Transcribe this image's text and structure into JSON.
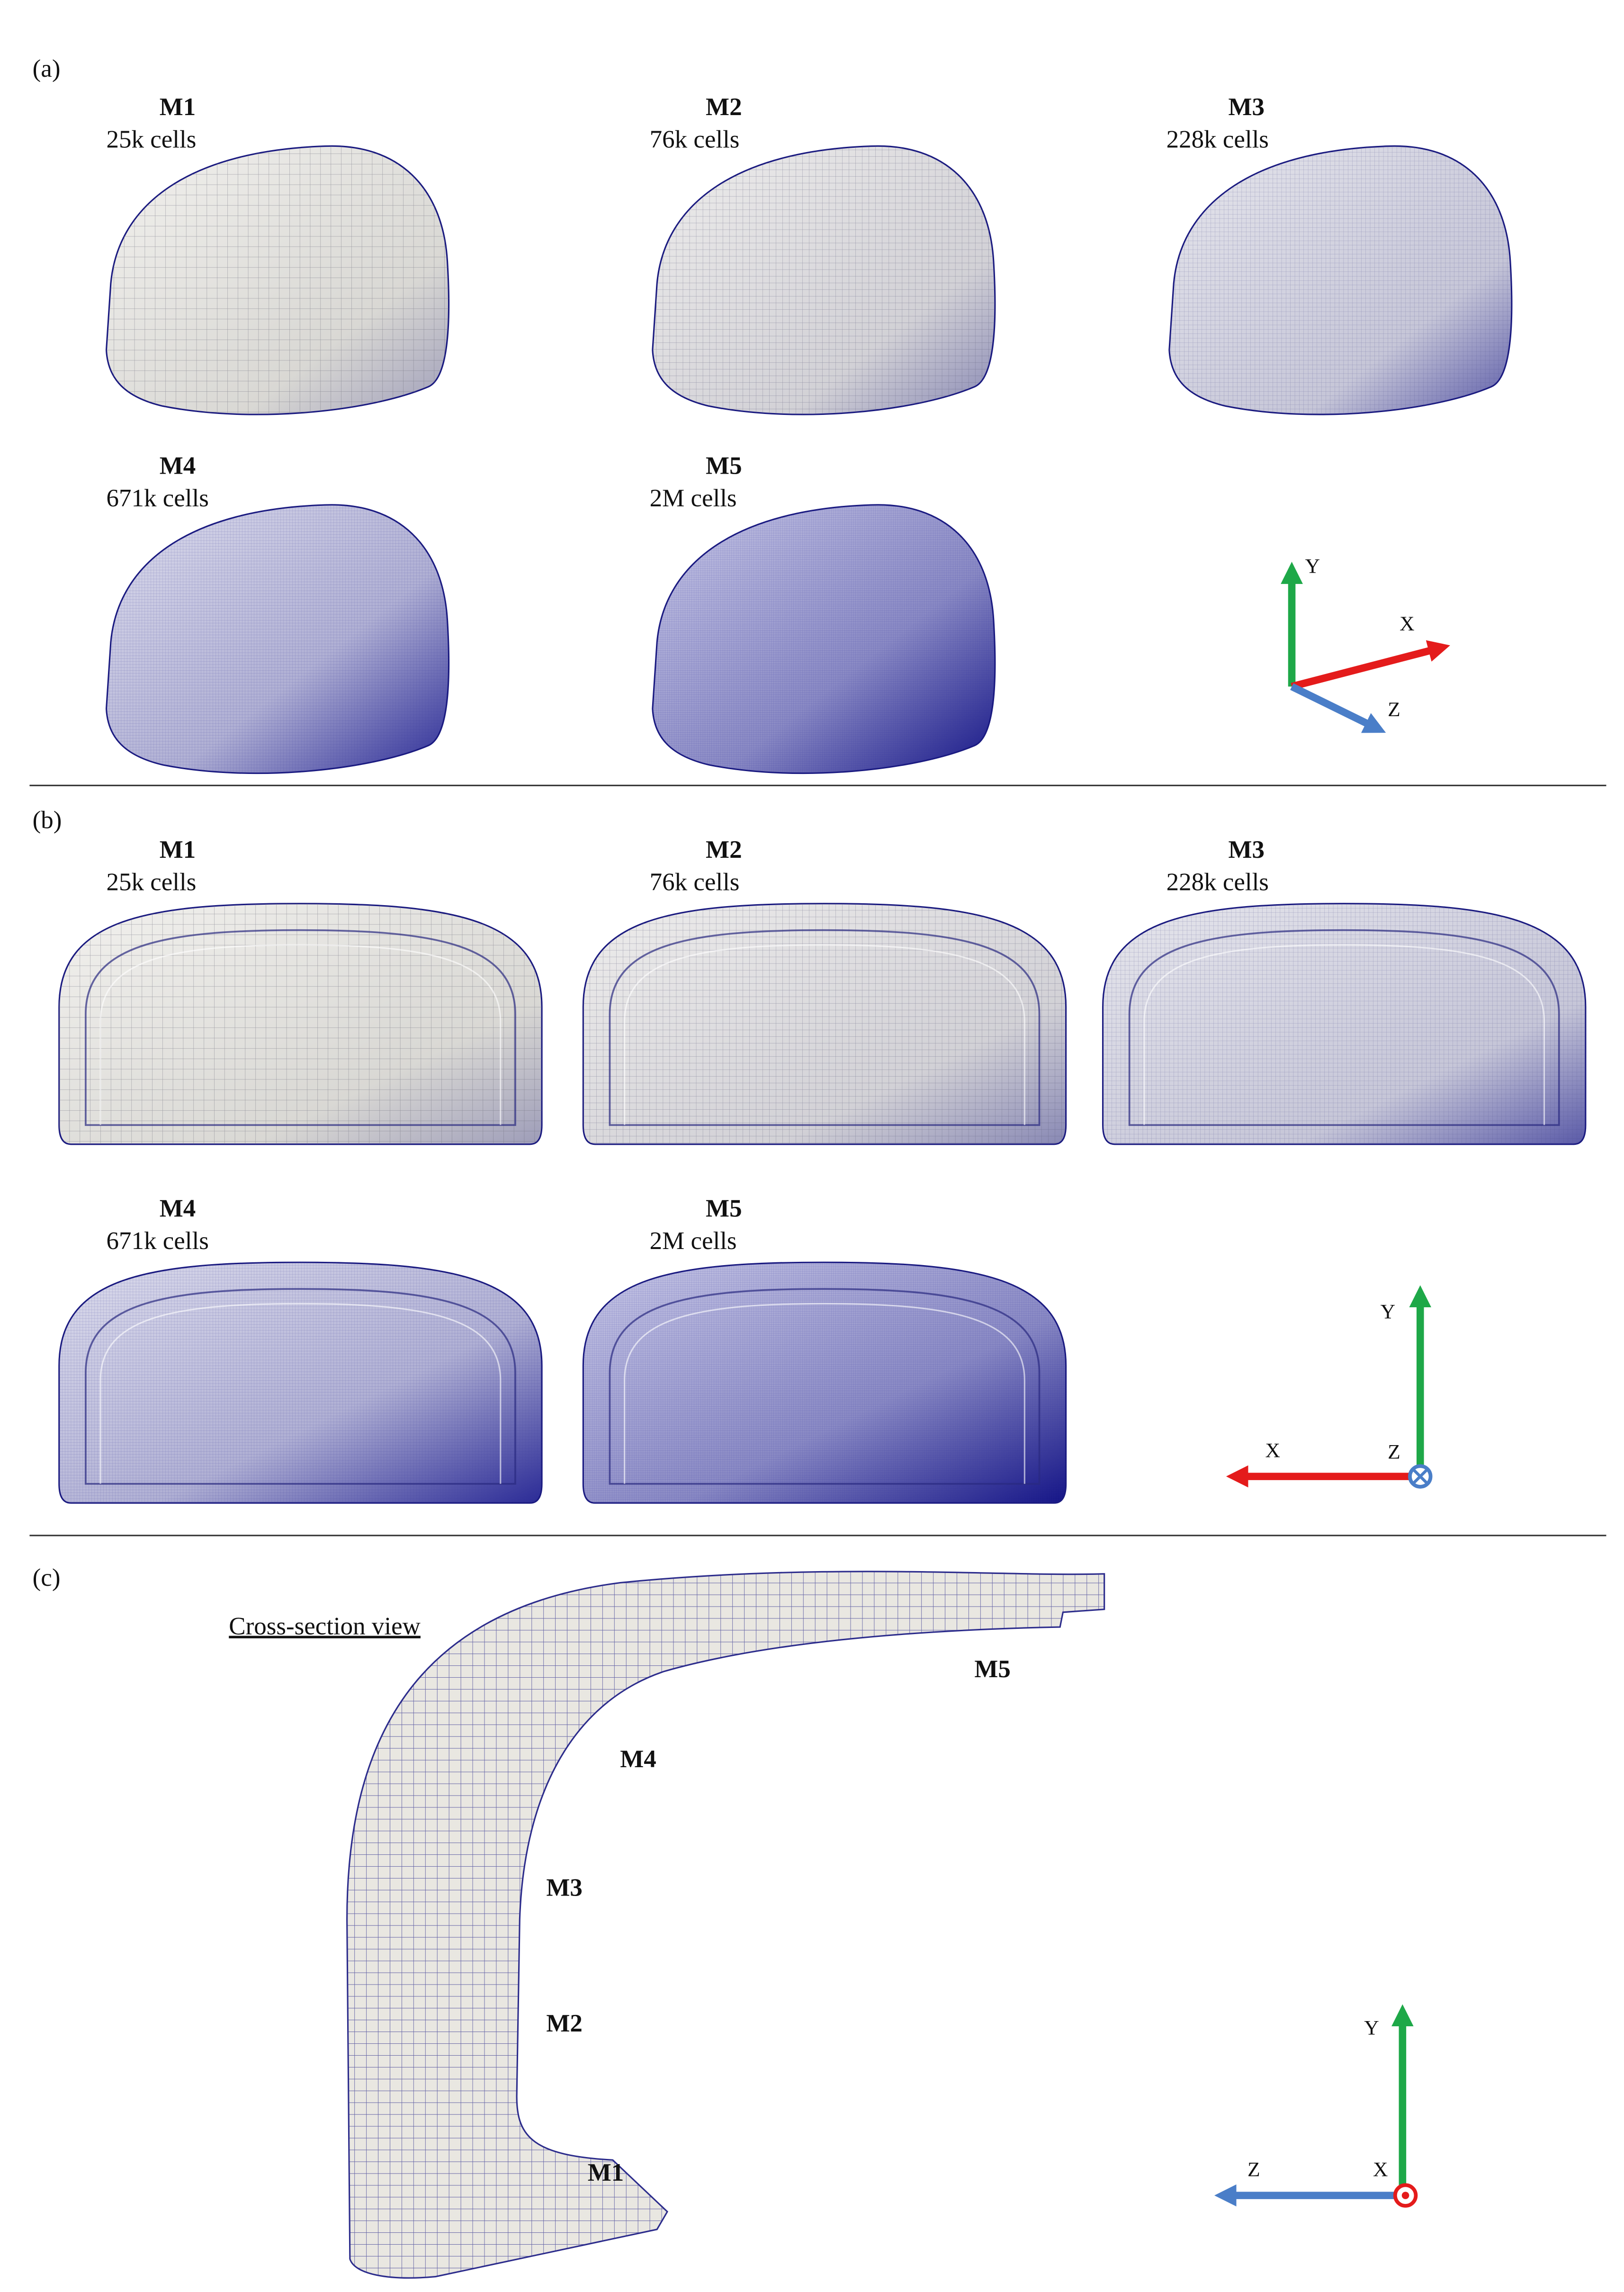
{
  "panels": [
    {
      "label": "(a)",
      "meshes": [
        {
          "name": "M1",
          "cells": "25k cells"
        },
        {
          "name": "M2",
          "cells": "76k cells"
        },
        {
          "name": "M3",
          "cells": "228k cells"
        },
        {
          "name": "M4",
          "cells": "671k cells"
        },
        {
          "name": "M5",
          "cells": "2M cells"
        }
      ],
      "axes": {
        "x": "X",
        "y": "Y",
        "z": "Z"
      }
    },
    {
      "label": "(b)",
      "meshes": [
        {
          "name": "M1",
          "cells": "25k cells"
        },
        {
          "name": "M2",
          "cells": "76k cells"
        },
        {
          "name": "M3",
          "cells": "228k cells"
        },
        {
          "name": "M4",
          "cells": "671k cells"
        },
        {
          "name": "M5",
          "cells": "2M cells"
        }
      ],
      "axes": {
        "x": "X",
        "y": "Y",
        "z": "Z"
      }
    },
    {
      "label": "(c)",
      "caption": "Cross-section view",
      "zones": [
        "M5",
        "M4",
        "M3",
        "M2",
        "M1"
      ],
      "axes": {
        "x": "X",
        "y": "Y",
        "z": "Z"
      }
    }
  ]
}
